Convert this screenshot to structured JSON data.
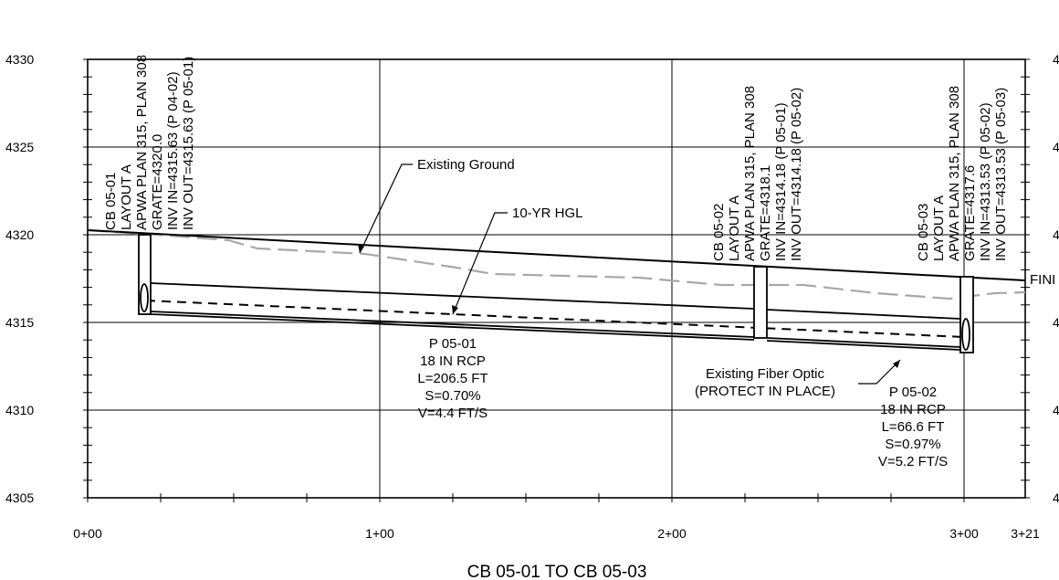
{
  "title": "CB 05-01 TO CB 05-03",
  "y_ticks": [
    "4330",
    "4325",
    "4320",
    "4315",
    "4310",
    "4305"
  ],
  "x_ticks": [
    "0+00",
    "1+00",
    "2+00",
    "3+00",
    "3+21"
  ],
  "right_ticks": [
    "4",
    "4",
    "4",
    "4",
    "4",
    "4"
  ],
  "structures": [
    {
      "id": "cb1",
      "lines": [
        "CB 05-01",
        "LAYOUT A",
        "APWA PLAN 315, PLAN 308",
        "GRATE=4320.0",
        "INV IN=4315.63 (P 04-02)",
        "INV OUT=4315.63 (P 05-01)"
      ]
    },
    {
      "id": "cb2",
      "lines": [
        "CB 05-02",
        "LAYOUT A",
        "APWA PLAN 315, PLAN 308",
        "GRATE=4318.1",
        "INV IN=4314.18 (P 05-01)",
        "INV OUT=4314.18 (P 05-02)"
      ]
    },
    {
      "id": "cb3",
      "lines": [
        "CB 05-03",
        "LAYOUT A",
        "APWA PLAN 315, PLAN 308",
        "GRATE=4317.6",
        "INV IN=4313.53 (P 05-02)",
        "INV OUT=4313.53 (P 05-03)"
      ]
    }
  ],
  "pipes": [
    {
      "id": "p1",
      "lines": [
        "P 05-01",
        "18 IN RCP",
        "L=206.5 FT",
        "S=0.70%",
        "V=4.4 FT/S"
      ]
    },
    {
      "id": "p2",
      "lines": [
        "P 05-02",
        "18 IN RCP",
        "L=66.6 FT",
        "S=0.97%",
        "V=5.2 FT/S"
      ]
    }
  ],
  "callouts": {
    "existing_ground": "Existing Ground",
    "hgl": "10-YR HGL",
    "fiber_1": "Existing Fiber Optic",
    "fiber_2": "(PROTECT IN PLACE)",
    "finish": "FINI"
  }
}
